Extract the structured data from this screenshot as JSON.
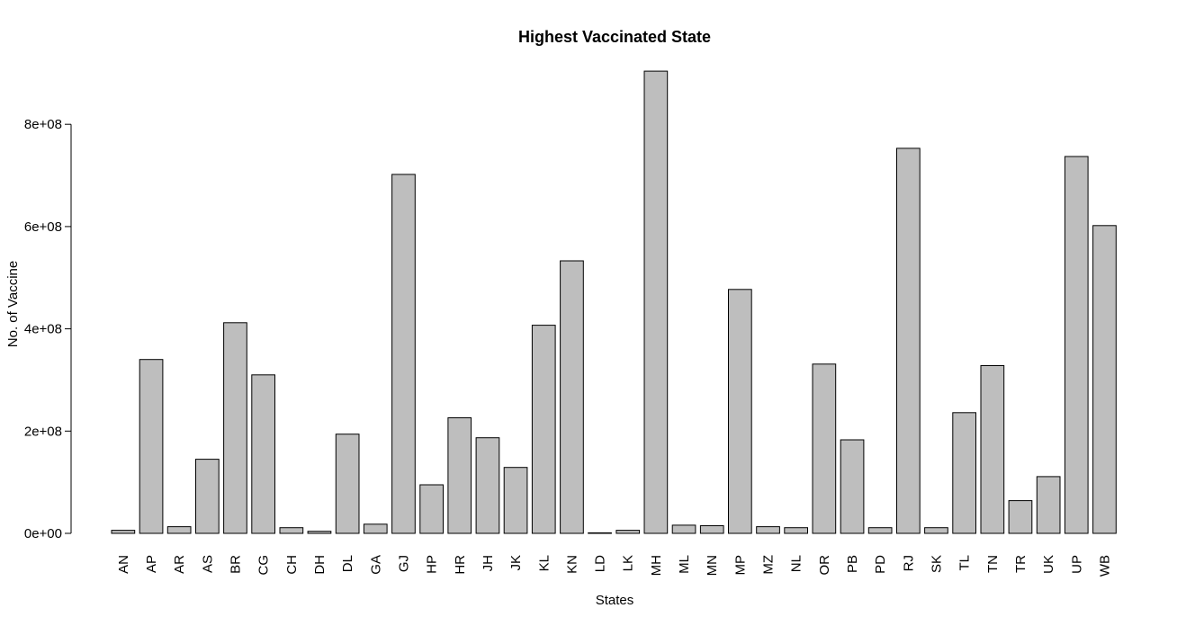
{
  "chart_data": {
    "type": "bar",
    "title": "Highest Vaccinated State",
    "xlabel": "States",
    "ylabel": "No. of Vaccine",
    "ylim": [
      0,
      900000000
    ],
    "yticks": [
      0,
      200000000,
      400000000,
      600000000,
      800000000
    ],
    "ytick_labels": [
      "0e+00",
      "2e+08",
      "4e+08",
      "6e+08",
      "8e+08"
    ],
    "grid": false,
    "bar_color": "#bebebe",
    "edge_color": "#000000",
    "categories": [
      "AN",
      "AP",
      "AR",
      "AS",
      "BR",
      "CG",
      "CH",
      "DH",
      "DL",
      "GA",
      "GJ",
      "HP",
      "HR",
      "JH",
      "JK",
      "KL",
      "KN",
      "LD",
      "LK",
      "MH",
      "ML",
      "MN",
      "MP",
      "MZ",
      "NL",
      "OR",
      "PB",
      "PD",
      "RJ",
      "SK",
      "TL",
      "TN",
      "TR",
      "UK",
      "UP",
      "WB"
    ],
    "values": [
      6000000,
      340000000,
      13000000,
      145000000,
      412000000,
      310000000,
      11000000,
      4000000,
      194000000,
      18000000,
      702000000,
      95000000,
      226000000,
      187000000,
      129000000,
      407000000,
      533000000,
      1000000,
      6000000,
      904000000,
      16000000,
      15000000,
      477000000,
      13000000,
      11000000,
      331000000,
      183000000,
      11000000,
      753000000,
      11000000,
      236000000,
      328000000,
      64000000,
      111000000,
      737000000,
      602000000
    ]
  }
}
